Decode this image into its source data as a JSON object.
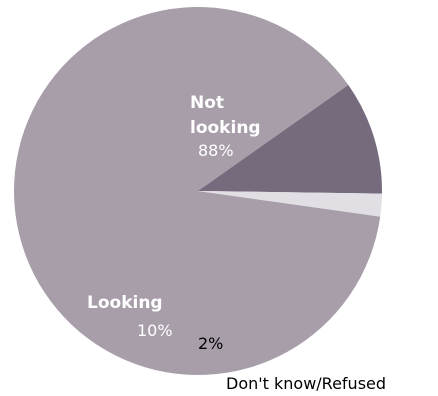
{
  "chart_data": {
    "type": "pie",
    "title": "",
    "slices": [
      {
        "label_lines": [
          "Not",
          "looking"
        ],
        "label": "Not looking",
        "value": 88,
        "value_label": "88%",
        "color": "#a79eaa",
        "label_color": "#ffffff"
      },
      {
        "label_lines": [
          "Looking"
        ],
        "label": "Looking",
        "value": 10,
        "value_label": "10%",
        "color": "#766a7d",
        "label_color": "#ffffff"
      },
      {
        "label_lines": [
          "Don't know/Refused"
        ],
        "label": "Don't know/Refused",
        "value": 2,
        "value_label": "2%",
        "color": "#e1dfe3",
        "label_color": "#000000"
      }
    ]
  }
}
